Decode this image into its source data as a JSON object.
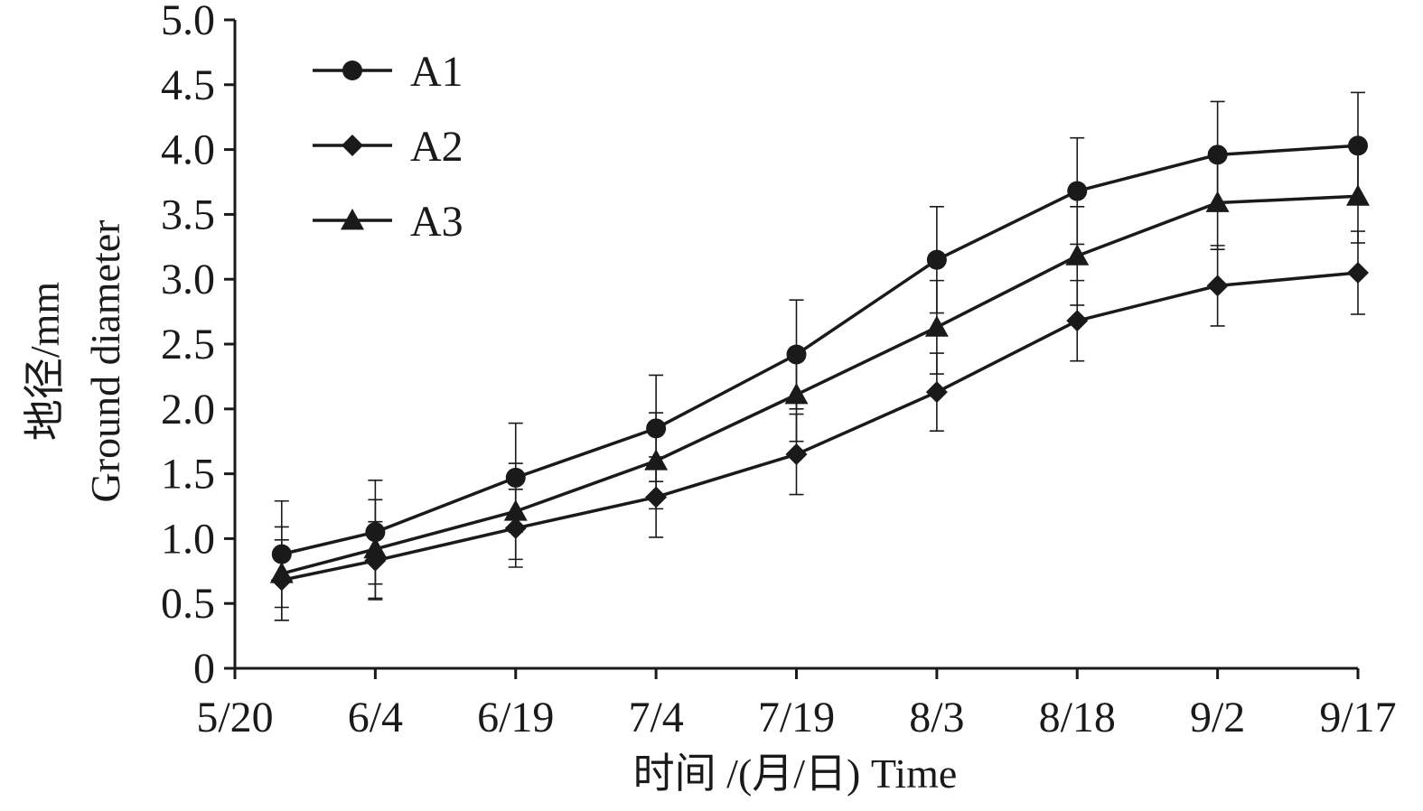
{
  "chart_data": {
    "type": "line",
    "title": "",
    "xlabel": "时间 /(月/日) Time",
    "ylabel_line1": "地径/mm",
    "ylabel_line2": "Ground diameter",
    "x_ticks": [
      "5/20",
      "6/4",
      "6/19",
      "7/4",
      "7/19",
      "8/3",
      "8/18",
      "9/2",
      "9/17"
    ],
    "x_points": [
      "5/25",
      "6/4",
      "6/19",
      "7/4",
      "7/19",
      "8/3",
      "8/18",
      "9/2",
      "9/17"
    ],
    "y_ticks": [
      "0",
      "0.5",
      "1.0",
      "1.5",
      "2.0",
      "2.5",
      "3.0",
      "3.5",
      "4.0",
      "4.5",
      "5.0"
    ],
    "ylim": [
      0,
      5.0
    ],
    "grid": false,
    "legend_position": "top-left",
    "line_color": "#1a1a1a",
    "series": [
      {
        "name": "A1",
        "marker": "circle",
        "values": [
          0.88,
          1.05,
          1.47,
          1.85,
          2.42,
          3.15,
          3.68,
          3.96,
          4.03
        ],
        "errors": [
          0.41,
          0.4,
          0.42,
          0.41,
          0.42,
          0.41,
          0.41,
          0.41,
          0.41
        ]
      },
      {
        "name": "A2",
        "marker": "diamond",
        "values": [
          0.68,
          0.83,
          1.08,
          1.32,
          1.65,
          2.13,
          2.68,
          2.95,
          3.05
        ],
        "errors": [
          0.31,
          0.3,
          0.3,
          0.31,
          0.31,
          0.3,
          0.31,
          0.31,
          0.32
        ]
      },
      {
        "name": "A3",
        "marker": "triangle",
        "values": [
          0.73,
          0.92,
          1.21,
          1.6,
          2.11,
          2.63,
          3.18,
          3.59,
          3.64
        ],
        "errors": [
          0.36,
          0.38,
          0.37,
          0.37,
          0.36,
          0.36,
          0.38,
          0.36,
          0.36
        ]
      }
    ]
  }
}
